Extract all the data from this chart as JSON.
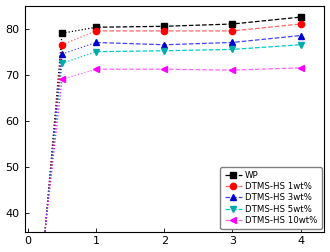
{
  "x_full": [
    0.25,
    0.5,
    1,
    2,
    3,
    4
  ],
  "series": [
    {
      "name": "WP",
      "color": "#000000",
      "marker": "s",
      "values": [
        36.0,
        79.0,
        80.3,
        80.5,
        81.0,
        82.5
      ],
      "dash_color": "#000000"
    },
    {
      "name": "DTMS-HS 1wt%",
      "color": "#ff0000",
      "marker": "o",
      "values": [
        36.0,
        76.5,
        79.5,
        79.5,
        79.5,
        81.0
      ],
      "dash_color": "#ff6666"
    },
    {
      "name": "DTMS-HS 3wt%",
      "color": "#0000cc",
      "marker": "^",
      "values": [
        36.0,
        74.5,
        77.0,
        76.5,
        77.0,
        78.5
      ],
      "dash_color": "#4444ff"
    },
    {
      "name": "DTMS-HS 5wt%",
      "color": "#00aaaa",
      "marker": "v",
      "values": [
        36.0,
        72.5,
        75.0,
        75.2,
        75.5,
        76.5
      ],
      "dash_color": "#00cccc"
    },
    {
      "name": "DTMS-HS 10wt%",
      "color": "#ff00ff",
      "marker": "<",
      "values": [
        36.0,
        69.0,
        71.2,
        71.2,
        71.0,
        71.5
      ],
      "dash_color": "#ff66ff"
    }
  ],
  "ylim": [
    36,
    85
  ],
  "xlim": [
    -0.05,
    4.35
  ],
  "yticks": [
    40,
    50,
    60,
    70,
    80
  ],
  "xticks": [
    0,
    1,
    2,
    3,
    4
  ],
  "figsize": [
    3.3,
    2.52
  ],
  "dpi": 100
}
